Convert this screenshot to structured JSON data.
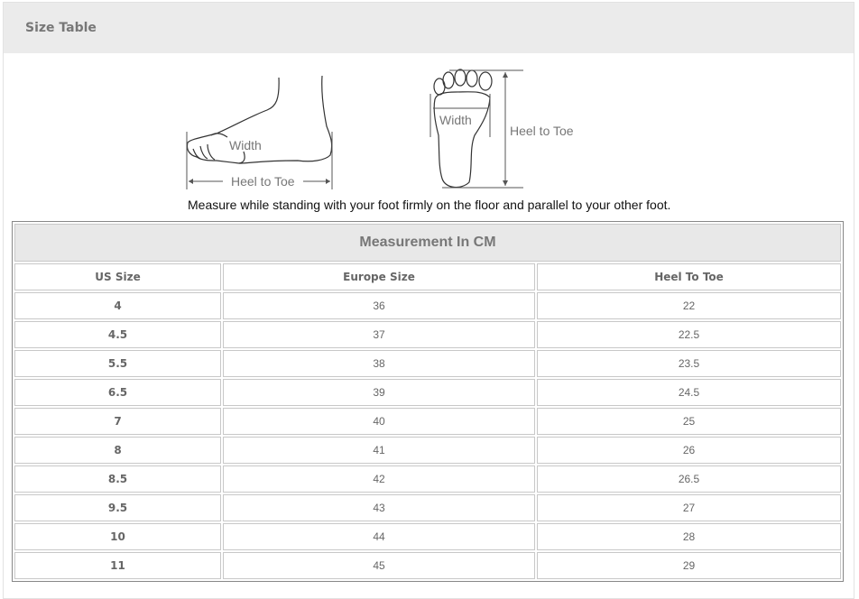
{
  "header": {
    "title": "Size Table"
  },
  "diagram": {
    "side_width_label": "Width",
    "side_length_label": "Heel to Toe",
    "sole_width_label": "Width",
    "sole_length_label": "Heel to Toe",
    "instruction": "Measure while standing with your foot firmly on the floor and parallel to your other foot."
  },
  "table": {
    "caption": "Measurement In CM",
    "columns": [
      "US Size",
      "Europe Size",
      "Heel To Toe"
    ],
    "rows": [
      [
        "4",
        "36",
        "22"
      ],
      [
        "4.5",
        "37",
        "22.5"
      ],
      [
        "5.5",
        "38",
        "23.5"
      ],
      [
        "6.5",
        "39",
        "24.5"
      ],
      [
        "7",
        "40",
        "25"
      ],
      [
        "8",
        "41",
        "26"
      ],
      [
        "8.5",
        "42",
        "26.5"
      ],
      [
        "9.5",
        "43",
        "27"
      ],
      [
        "10",
        "44",
        "28"
      ],
      [
        "11",
        "45",
        "29"
      ]
    ]
  }
}
